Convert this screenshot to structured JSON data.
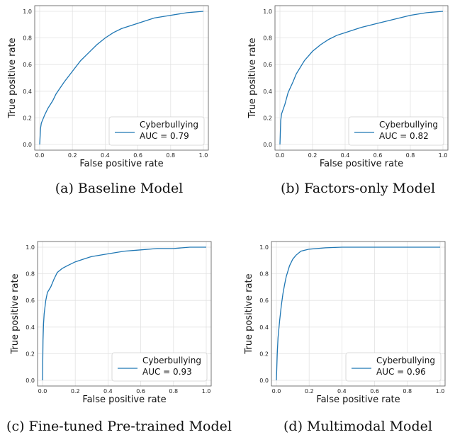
{
  "chart_data": [
    {
      "type": "line",
      "caption": "(a) Baseline Model",
      "xlabel": "False positive rate",
      "ylabel": "True positive rate",
      "xlim": [
        0,
        1
      ],
      "ylim": [
        0,
        1
      ],
      "xticks": [
        "0.0",
        "0.2",
        "0.4",
        "0.6",
        "0.8",
        "1.0"
      ],
      "yticks": [
        "0.0",
        "0.2",
        "0.4",
        "0.6",
        "0.8",
        "1.0"
      ],
      "grid": true,
      "legend_position": "lower-right",
      "series": [
        {
          "name": "Cyberbullying",
          "auc_label": "AUC = 0.79",
          "color": "#1f77b4",
          "x": [
            0,
            0.005,
            0.01,
            0.03,
            0.05,
            0.08,
            0.1,
            0.15,
            0.2,
            0.25,
            0.3,
            0.35,
            0.4,
            0.45,
            0.5,
            0.6,
            0.7,
            0.8,
            0.9,
            1.0
          ],
          "y": [
            0,
            0.12,
            0.16,
            0.22,
            0.27,
            0.33,
            0.38,
            0.47,
            0.55,
            0.63,
            0.69,
            0.75,
            0.8,
            0.84,
            0.87,
            0.91,
            0.95,
            0.97,
            0.99,
            1.0
          ]
        }
      ]
    },
    {
      "type": "line",
      "caption": "(b) Factors-only Model",
      "xlabel": "False positive rate",
      "ylabel": "True positive rate",
      "xlim": [
        0,
        1
      ],
      "ylim": [
        0,
        1
      ],
      "xticks": [
        "0.0",
        "0.2",
        "0.4",
        "0.6",
        "0.8",
        "1.0"
      ],
      "yticks": [
        "0.0",
        "0.2",
        "0.4",
        "0.6",
        "0.8",
        "1.0"
      ],
      "grid": true,
      "legend_position": "lower-right",
      "series": [
        {
          "name": "Cyberbullying",
          "auc_label": "AUC = 0.82",
          "color": "#1f77b4",
          "x": [
            0,
            0.005,
            0.01,
            0.03,
            0.05,
            0.08,
            0.1,
            0.15,
            0.2,
            0.25,
            0.3,
            0.35,
            0.4,
            0.5,
            0.6,
            0.7,
            0.8,
            0.9,
            1.0
          ],
          "y": [
            0,
            0.18,
            0.23,
            0.3,
            0.39,
            0.47,
            0.53,
            0.63,
            0.7,
            0.75,
            0.79,
            0.82,
            0.84,
            0.88,
            0.91,
            0.94,
            0.97,
            0.99,
            1.0
          ]
        }
      ]
    },
    {
      "type": "line",
      "caption": "(c) Fine-tuned Pre-trained Model",
      "xlabel": "False positive rate",
      "ylabel": "True positive rate",
      "xlim": [
        0,
        1
      ],
      "ylim": [
        0,
        1
      ],
      "xticks": [
        "0.0",
        "0.2",
        "0.4",
        "0.6",
        "0.8",
        "1.0"
      ],
      "yticks": [
        "0.0",
        "0.2",
        "0.4",
        "0.6",
        "0.8",
        "1.0"
      ],
      "grid": true,
      "legend_position": "lower-right",
      "series": [
        {
          "name": "Cyberbullying",
          "auc_label": "AUC = 0.93",
          "color": "#1f77b4",
          "x": [
            0,
            0.003,
            0.006,
            0.01,
            0.02,
            0.03,
            0.05,
            0.07,
            0.09,
            0.12,
            0.15,
            0.2,
            0.25,
            0.3,
            0.4,
            0.5,
            0.6,
            0.7,
            0.8,
            0.9,
            1.0
          ],
          "y": [
            0,
            0.3,
            0.42,
            0.5,
            0.6,
            0.66,
            0.7,
            0.76,
            0.81,
            0.84,
            0.86,
            0.89,
            0.91,
            0.93,
            0.95,
            0.97,
            0.98,
            0.99,
            0.99,
            1.0,
            1.0
          ]
        }
      ]
    },
    {
      "type": "line",
      "caption": "(d) Multimodal Model",
      "xlabel": "False positive rate",
      "ylabel": "True positive rate",
      "xlim": [
        0,
        1
      ],
      "ylim": [
        0,
        1
      ],
      "xticks": [
        "0.0",
        "0.2",
        "0.4",
        "0.6",
        "0.8",
        "1.0"
      ],
      "yticks": [
        "0.0",
        "0.2",
        "0.4",
        "0.6",
        "0.8",
        "1.0"
      ],
      "grid": true,
      "legend_position": "lower-right",
      "series": [
        {
          "name": "Cyberbullying",
          "auc_label": "AUC = 0.96",
          "color": "#1f77b4",
          "x": [
            0,
            0.005,
            0.01,
            0.02,
            0.03,
            0.04,
            0.05,
            0.06,
            0.08,
            0.1,
            0.12,
            0.15,
            0.2,
            0.3,
            0.4,
            0.5,
            0.6,
            0.8,
            1.0
          ],
          "y": [
            0,
            0.2,
            0.32,
            0.45,
            0.56,
            0.65,
            0.72,
            0.78,
            0.86,
            0.91,
            0.94,
            0.97,
            0.985,
            0.995,
            1.0,
            1.0,
            1.0,
            1.0,
            1.0
          ]
        }
      ]
    }
  ]
}
